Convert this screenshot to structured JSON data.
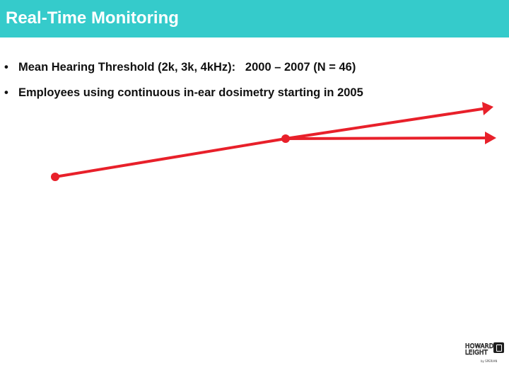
{
  "slide": {
    "title": "Real-Time Monitoring",
    "bullets": [
      {
        "symbol": "•",
        "text": "Mean Hearing Threshold (2k, 3k, 4kHz):   2000 – 2007 (N = 46)"
      },
      {
        "symbol": "•",
        "text": "Employees using continuous in-ear dosimetry starting in 2005"
      }
    ]
  },
  "colors": {
    "title_bar": "#35cbcb",
    "arrow": "#e8202a"
  },
  "logo": {
    "line1": "HOWARD",
    "line2": "LEIGHT",
    "byline": "by SPERIAN",
    "icon": "earplug-logo-icon"
  }
}
